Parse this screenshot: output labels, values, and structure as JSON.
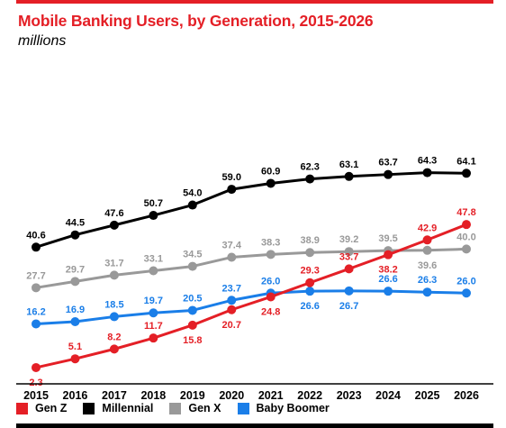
{
  "title": "Mobile Banking Users, by Generation, 2015-2026",
  "subtitle": "millions",
  "colors": {
    "accent": "#e41f26",
    "gen_z": "#e41f26",
    "millennial": "#000000",
    "gen_x": "#999999",
    "baby_boomer": "#1a7ee8"
  },
  "legend": [
    {
      "label": "Gen Z",
      "color": "#e41f26"
    },
    {
      "label": "Millennial",
      "color": "#000000"
    },
    {
      "label": "Gen X",
      "color": "#999999"
    },
    {
      "label": "Baby Boomer",
      "color": "#1a7ee8"
    }
  ],
  "chart_data": {
    "type": "line",
    "title": "Mobile Banking Users, by Generation, 2015-2026",
    "subtitle": "millions",
    "categories": [
      "2015",
      "2016",
      "2017",
      "2018",
      "2019",
      "2020",
      "2021",
      "2022",
      "2023",
      "2024",
      "2025",
      "2026"
    ],
    "grid": false,
    "legend_position": "bottom",
    "series": [
      {
        "name": "Gen Z",
        "color": "#e41f26",
        "values": [
          2.3,
          5.1,
          8.2,
          11.7,
          15.8,
          20.7,
          24.8,
          29.3,
          33.7,
          38.2,
          42.9,
          47.8
        ],
        "labels": [
          "2.3",
          "5.1",
          "8.2",
          "11.7",
          "15.8",
          "20.7",
          "24.8",
          "29.3",
          "33.7",
          "38.2",
          "42.9",
          "47.8"
        ]
      },
      {
        "name": "Millennial",
        "color": "#000000",
        "values": [
          40.6,
          44.5,
          47.6,
          50.7,
          54.0,
          59.0,
          60.9,
          62.3,
          63.1,
          63.7,
          64.3,
          64.1
        ],
        "labels": [
          "40.6",
          "44.5",
          "47.6",
          "50.7",
          "54.0",
          "59.0",
          "60.9",
          "62.3",
          "63.1",
          "63.7",
          "64.3",
          "64.1"
        ]
      },
      {
        "name": "Gen X",
        "color": "#999999",
        "values": [
          27.7,
          29.7,
          31.7,
          33.1,
          34.5,
          37.4,
          38.3,
          38.9,
          39.2,
          39.5,
          39.6,
          40.0
        ],
        "labels": [
          "27.7",
          "29.7",
          "31.7",
          "33.1",
          "34.5",
          "37.4",
          "38.3",
          "38.9",
          "39.2",
          "39.5",
          "39.6",
          "40.0"
        ]
      },
      {
        "name": "Baby Boomer",
        "color": "#1a7ee8",
        "values": [
          16.2,
          16.9,
          18.5,
          19.7,
          20.5,
          23.7,
          26.0,
          26.6,
          26.7,
          26.6,
          26.3,
          26.0
        ],
        "labels": [
          "16.2",
          "16.9",
          "18.5",
          "19.7",
          "20.5",
          "23.7",
          "26.0",
          "26.6",
          "26.7",
          "26.6",
          "26.3",
          "26.0"
        ]
      }
    ]
  }
}
